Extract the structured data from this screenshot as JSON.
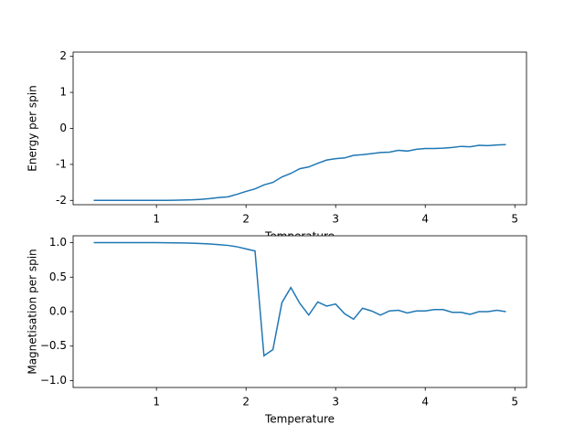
{
  "chart_data": [
    {
      "type": "line",
      "xlabel": "Temperature",
      "ylabel": "Energy per spin",
      "x": [
        0.3,
        0.4,
        0.5,
        0.6,
        0.7,
        0.8,
        0.9,
        1.0,
        1.1,
        1.2,
        1.3,
        1.4,
        1.5,
        1.6,
        1.7,
        1.8,
        1.9,
        2.0,
        2.1,
        2.2,
        2.3,
        2.4,
        2.5,
        2.6,
        2.7,
        2.8,
        2.9,
        3.0,
        3.1,
        3.2,
        3.3,
        3.4,
        3.5,
        3.6,
        3.7,
        3.8,
        3.9,
        4.0,
        4.1,
        4.2,
        4.3,
        4.4,
        4.5,
        4.6,
        4.7,
        4.8,
        4.9
      ],
      "series": [
        {
          "color": "#1f77b4",
          "values": [
            -2.0,
            -2.0,
            -2.0,
            -2.0,
            -2.0,
            -2.0,
            -2.0,
            -1.999,
            -1.998,
            -1.995,
            -1.99,
            -1.985,
            -1.97,
            -1.95,
            -1.92,
            -1.9,
            -1.83,
            -1.75,
            -1.68,
            -1.57,
            -1.5,
            -1.35,
            -1.25,
            -1.12,
            -1.07,
            -0.97,
            -0.88,
            -0.84,
            -0.82,
            -0.75,
            -0.73,
            -0.7,
            -0.67,
            -0.66,
            -0.61,
            -0.63,
            -0.58,
            -0.56,
            -0.56,
            -0.55,
            -0.53,
            -0.5,
            -0.51,
            -0.47,
            -0.48,
            -0.46,
            -0.45
          ]
        }
      ],
      "xlim": [
        0.07,
        5.13
      ],
      "xticks": [
        1,
        2,
        3,
        4,
        5
      ],
      "ylim": [
        -2.12,
        2.12
      ],
      "yticks": [
        -2,
        -1,
        0,
        1,
        2
      ]
    },
    {
      "type": "line",
      "xlabel": "Temperature",
      "ylabel": "Magnetisation per spin",
      "x": [
        0.3,
        0.4,
        0.5,
        0.6,
        0.7,
        0.8,
        0.9,
        1.0,
        1.1,
        1.2,
        1.3,
        1.4,
        1.5,
        1.6,
        1.7,
        1.8,
        1.9,
        2.0,
        2.1,
        2.2,
        2.3,
        2.4,
        2.5,
        2.6,
        2.7,
        2.8,
        2.9,
        3.0,
        3.1,
        3.2,
        3.3,
        3.4,
        3.5,
        3.6,
        3.7,
        3.8,
        3.9,
        4.0,
        4.1,
        4.2,
        4.3,
        4.4,
        4.5,
        4.6,
        4.7,
        4.8,
        4.9
      ],
      "series": [
        {
          "color": "#1f77b4",
          "values": [
            1.0,
            1.0,
            1.0,
            1.0,
            1.0,
            1.0,
            1.0,
            1.0,
            0.999,
            0.998,
            0.996,
            0.993,
            0.988,
            0.98,
            0.97,
            0.96,
            0.94,
            0.91,
            0.88,
            -0.64,
            -0.55,
            0.13,
            0.35,
            0.12,
            -0.05,
            0.14,
            0.08,
            0.11,
            -0.03,
            -0.11,
            0.05,
            0.01,
            -0.05,
            0.01,
            0.02,
            -0.02,
            0.01,
            0.01,
            0.03,
            0.03,
            -0.01,
            -0.01,
            -0.04,
            0.0,
            0.0,
            0.02,
            0.0
          ]
        }
      ],
      "xlim": [
        0.07,
        5.13
      ],
      "xticks": [
        1,
        2,
        3,
        4,
        5
      ],
      "ylim": [
        -1.1,
        1.1
      ],
      "yticks": [
        {
          "value": -1.0,
          "label": "−1.0"
        },
        {
          "value": -0.5,
          "label": "−0.5"
        },
        {
          "value": 0.0,
          "label": "0.0"
        },
        0.5,
        {
          "value": 1.0,
          "label": "1.0"
        }
      ]
    }
  ]
}
